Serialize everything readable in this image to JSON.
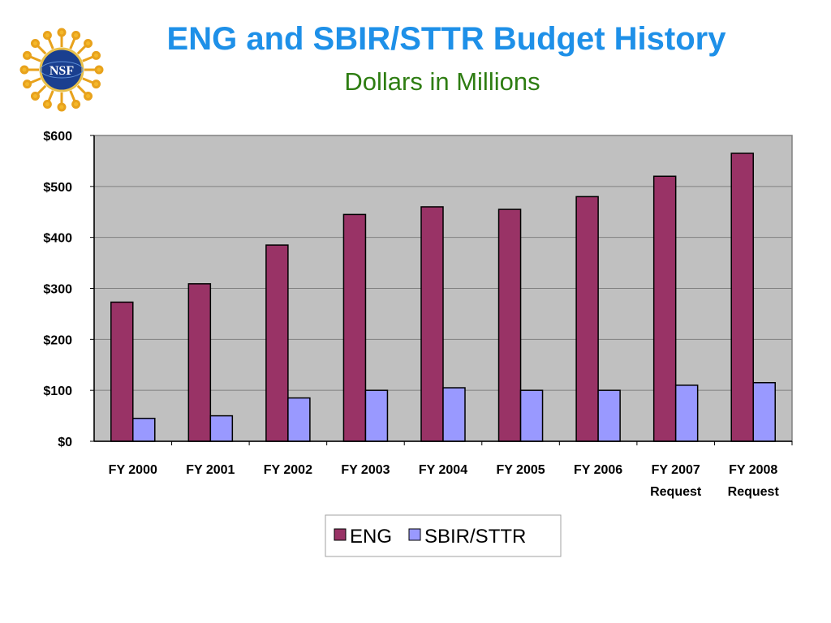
{
  "header": {
    "title": "ENG and SBIR/STTR Budget History",
    "subtitle": "Dollars in Millions",
    "logo_text": "NSF"
  },
  "colors": {
    "title": "#1e90e8",
    "subtitle": "#2e7d12",
    "plot_background": "#c0c0c0",
    "eng": "#993366",
    "sbir_sttr": "#9999ff"
  },
  "chart_data": {
    "type": "bar",
    "title": "ENG and SBIR/STTR Budget History",
    "subtitle": "Dollars in Millions",
    "xlabel": "",
    "ylabel": "",
    "categories": [
      [
        "FY 2000"
      ],
      [
        "FY 2001"
      ],
      [
        "FY 2002"
      ],
      [
        "FY 2003"
      ],
      [
        "FY 2004"
      ],
      [
        "FY 2005"
      ],
      [
        "FY 2006"
      ],
      [
        "FY 2007",
        "Request"
      ],
      [
        "FY 2008",
        "Request"
      ]
    ],
    "series": [
      {
        "name": "ENG",
        "color": "#993366",
        "values": [
          273,
          309,
          385,
          445,
          460,
          455,
          480,
          520,
          565
        ]
      },
      {
        "name": "SBIR/STTR",
        "color": "#9999ff",
        "values": [
          45,
          50,
          85,
          100,
          105,
          100,
          100,
          110,
          115
        ]
      }
    ],
    "y_ticks": [
      "$0",
      "$100",
      "$200",
      "$300",
      "$400",
      "$500",
      "$600"
    ],
    "ylim": [
      0,
      600
    ],
    "grid": true,
    "legend": "bottom"
  }
}
